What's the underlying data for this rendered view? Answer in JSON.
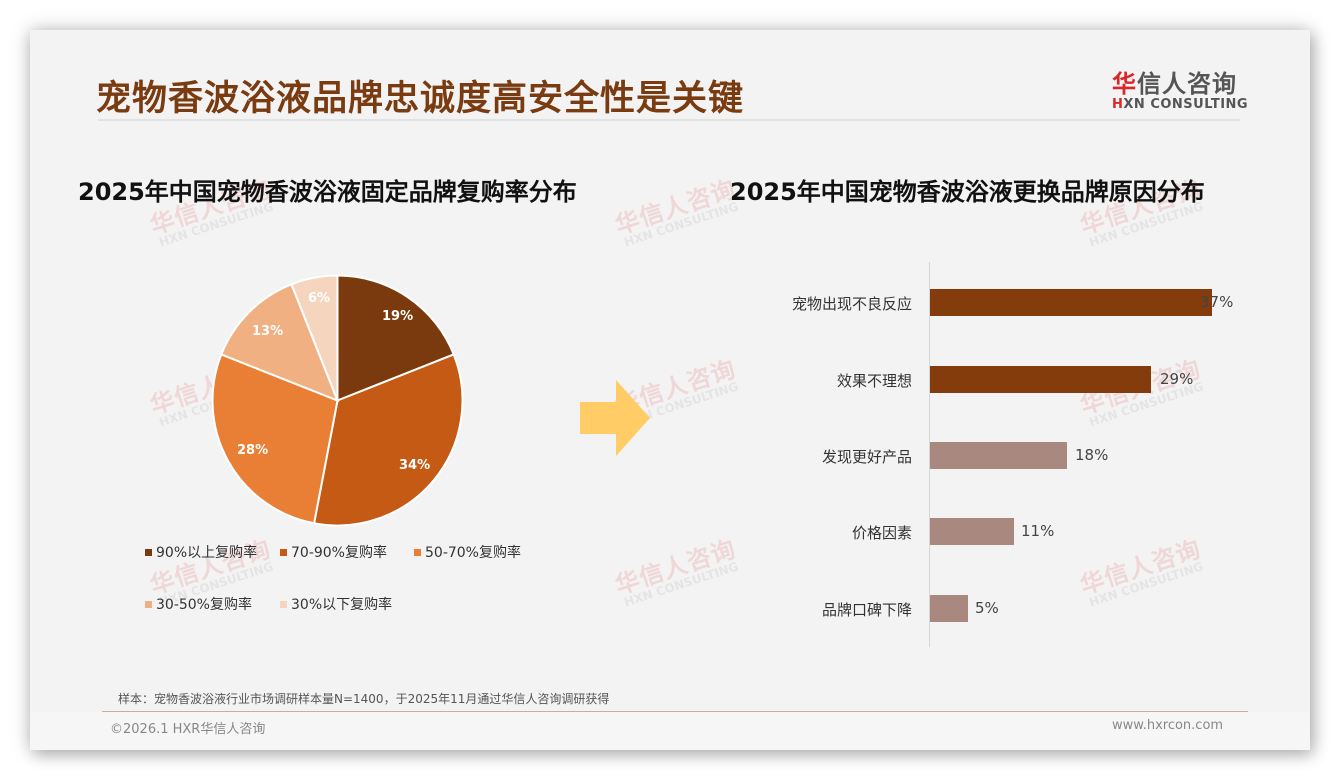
{
  "header": {
    "title": "宠物香波浴液品牌忠诚度高安全性是关键",
    "logo_cn_first": "华",
    "logo_cn_rest": "信人咨询",
    "logo_en_first": "H",
    "logo_en_rest": "XN CONSULTING"
  },
  "watermark": {
    "cn": "华信人咨询",
    "en": "HXN CONSULTING"
  },
  "colors": {
    "title": "#7a3b10",
    "pie": [
      "#7b3a0e",
      "#c55a14",
      "#e97f34",
      "#f1b082",
      "#f6d5bf"
    ],
    "bar_dark": "#843c0c",
    "bar_light": "#a9897f",
    "arrow": "#ffcc66"
  },
  "left_chart": {
    "title": "2025年中国宠物香波浴液固定品牌复购率分布",
    "labels": [
      "19%",
      "34%",
      "28%",
      "13%",
      "6%"
    ],
    "legend": [
      "90%以上复购率",
      "70-90%复购率",
      "50-70%复购率",
      "30-50%复购率",
      "30%以下复购率"
    ]
  },
  "right_chart": {
    "title": "2025年中国宠物香波浴液更换品牌原因分布",
    "categories": [
      "宠物出现不良反应",
      "效果不理想",
      "发现更好产品",
      "价格因素",
      "品牌口碑下降"
    ],
    "value_labels": [
      "37%",
      "29%",
      "18%",
      "11%",
      "5%"
    ]
  },
  "chart_data": [
    {
      "type": "pie",
      "title": "2025年中国宠物香波浴液固定品牌复购率分布",
      "categories": [
        "90%以上复购率",
        "70-90%复购率",
        "50-70%复购率",
        "30-50%复购率",
        "30%以下复购率"
      ],
      "values": [
        19,
        34,
        28,
        13,
        6
      ],
      "unit": "%",
      "legend_position": "bottom",
      "start_angle": "12 o'clock, clockwise"
    },
    {
      "type": "bar",
      "orientation": "horizontal",
      "title": "2025年中国宠物香波浴液更换品牌原因分布",
      "categories": [
        "宠物出现不良反应",
        "效果不理想",
        "发现更好产品",
        "价格因素",
        "品牌口碑下降"
      ],
      "values": [
        37,
        29,
        18,
        11,
        5
      ],
      "unit": "%",
      "xlabel": "",
      "ylabel": "",
      "grid": false,
      "data_labels": true
    }
  ],
  "footer": {
    "note": "样本：宠物香波浴液行业市场调研样本量N=1400，于2025年11月通过华信人咨询调研获得",
    "copyright": "©2026.1 HXR华信人咨询",
    "website": "www.hxrcon.com"
  }
}
